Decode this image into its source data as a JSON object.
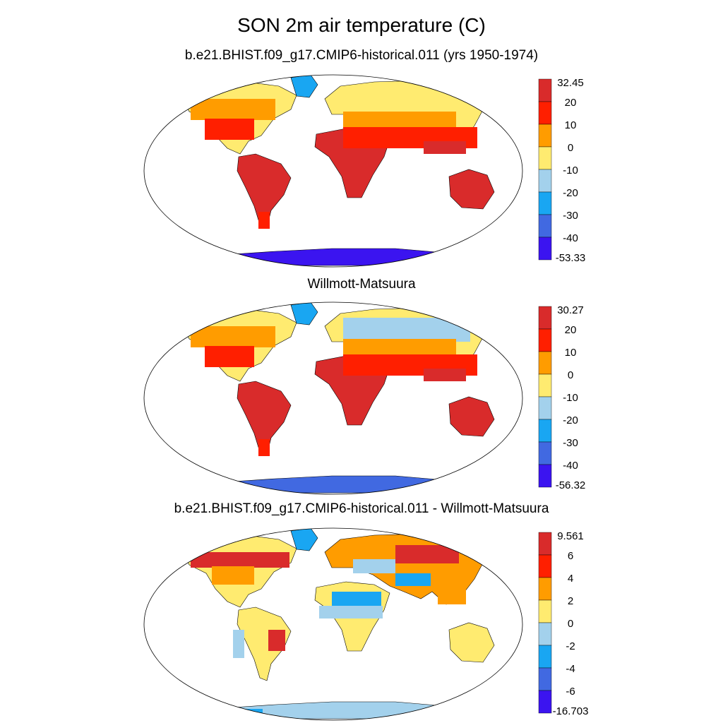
{
  "figure": {
    "title": "SON 2m air temperature (C)"
  },
  "panels": [
    {
      "title": "b.e21.BHIST.f09_g17.CMIP6-historical.011 (yrs 1950-1974)",
      "colorbar": {
        "max_label": "32.45",
        "min_label": "-53.33",
        "ticks": [
          "20",
          "10",
          "0",
          "-10",
          "-20",
          "-30",
          "-40"
        ],
        "colors": [
          "#d92b2b",
          "#ff1f00",
          "#ff9c00",
          "#ffeb70",
          "#a3d1ec",
          "#19a6f2",
          "#4169e1",
          "#3b14f0"
        ]
      }
    },
    {
      "title": "Willmott-Matsuura",
      "colorbar": {
        "max_label": "30.27",
        "min_label": "-56.32",
        "ticks": [
          "20",
          "10",
          "0",
          "-10",
          "-20",
          "-30",
          "-40"
        ],
        "colors": [
          "#d92b2b",
          "#ff1f00",
          "#ff9c00",
          "#ffeb70",
          "#a3d1ec",
          "#19a6f2",
          "#4169e1",
          "#3b14f0"
        ]
      }
    },
    {
      "title": "b.e21.BHIST.f09_g17.CMIP6-historical.011 - Willmott-Matsuura",
      "colorbar": {
        "max_label": "9.561",
        "min_label": "-16.703",
        "ticks": [
          "6",
          "4",
          "2",
          "0",
          "-2",
          "-4",
          "-6"
        ],
        "colors": [
          "#d92b2b",
          "#ff1f00",
          "#ff9c00",
          "#ffeb70",
          "#a3d1ec",
          "#19a6f2",
          "#4169e1",
          "#3b14f0"
        ]
      }
    }
  ]
}
